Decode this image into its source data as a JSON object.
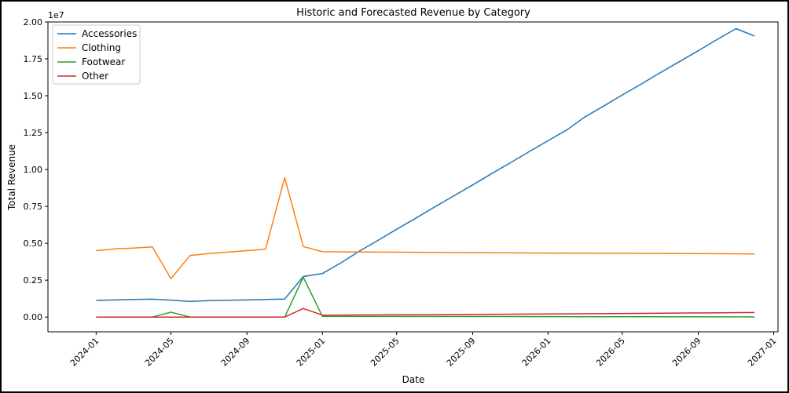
{
  "chart_data": {
    "type": "line",
    "title": "Historic and Forecasted Revenue by Category",
    "xlabel": "Date",
    "ylabel": "Total Revenue",
    "y_offset_text": "1e7",
    "xlim": [
      "2023-10-15",
      "2027-01-08"
    ],
    "ylim": [
      -0.1,
      2.0
    ],
    "y_multiplier": 10000000,
    "x_ticks": [
      "2024-01",
      "2024-05",
      "2024-09",
      "2025-01",
      "2025-05",
      "2025-09",
      "2026-01",
      "2026-05",
      "2026-09",
      "2027-01"
    ],
    "y_ticks": [
      "0.00",
      "0.25",
      "0.50",
      "0.75",
      "1.00",
      "1.25",
      "1.50",
      "1.75",
      "2.00"
    ],
    "legend_position": "upper-left",
    "grid": false,
    "series": [
      {
        "name": "Accessories",
        "color": "#1f77b4",
        "points": [
          [
            "2024-01-01",
            0.113
          ],
          [
            "2024-02-01",
            0.116
          ],
          [
            "2024-03-01",
            0.119
          ],
          [
            "2024-04-01",
            0.121
          ],
          [
            "2024-05-01",
            0.115
          ],
          [
            "2024-06-01",
            0.106
          ],
          [
            "2024-07-01",
            0.111
          ],
          [
            "2024-08-01",
            0.114
          ],
          [
            "2024-09-01",
            0.116
          ],
          [
            "2024-10-01",
            0.119
          ],
          [
            "2024-11-01",
            0.122
          ],
          [
            "2024-12-01",
            0.275
          ],
          [
            "2025-01-01",
            0.295
          ],
          [
            "2025-02-01",
            0.37
          ],
          [
            "2025-03-01",
            0.445
          ],
          [
            "2025-04-01",
            0.52
          ],
          [
            "2025-05-01",
            0.595
          ],
          [
            "2025-06-01",
            0.67
          ],
          [
            "2025-07-01",
            0.745
          ],
          [
            "2025-08-01",
            0.82
          ],
          [
            "2025-09-01",
            0.895
          ],
          [
            "2025-10-01",
            0.97
          ],
          [
            "2025-11-01",
            1.045
          ],
          [
            "2025-12-01",
            1.12
          ],
          [
            "2026-01-01",
            1.195
          ],
          [
            "2026-02-01",
            1.27
          ],
          [
            "2026-03-01",
            1.355
          ],
          [
            "2026-04-01",
            1.43
          ],
          [
            "2026-05-01",
            1.505
          ],
          [
            "2026-06-01",
            1.58
          ],
          [
            "2026-07-01",
            1.655
          ],
          [
            "2026-08-01",
            1.73
          ],
          [
            "2026-09-01",
            1.805
          ],
          [
            "2026-10-01",
            1.88
          ],
          [
            "2026-11-01",
            1.955
          ],
          [
            "2026-12-01",
            1.905
          ]
        ]
      },
      {
        "name": "Clothing",
        "color": "#ff7f0e",
        "points": [
          [
            "2024-01-01",
            0.45
          ],
          [
            "2024-02-01",
            0.462
          ],
          [
            "2024-03-01",
            0.468
          ],
          [
            "2024-04-01",
            0.475
          ],
          [
            "2024-05-01",
            0.26
          ],
          [
            "2024-06-01",
            0.418
          ],
          [
            "2024-07-01",
            0.43
          ],
          [
            "2024-08-01",
            0.44
          ],
          [
            "2024-09-01",
            0.45
          ],
          [
            "2024-10-01",
            0.46
          ],
          [
            "2024-11-01",
            0.945
          ],
          [
            "2024-12-01",
            0.478
          ],
          [
            "2025-01-01",
            0.443
          ],
          [
            "2025-03-01",
            0.441
          ],
          [
            "2025-06-01",
            0.439
          ],
          [
            "2025-09-01",
            0.437
          ],
          [
            "2026-01-01",
            0.434
          ],
          [
            "2026-05-01",
            0.432
          ],
          [
            "2026-09-01",
            0.43
          ],
          [
            "2026-12-01",
            0.428
          ]
        ]
      },
      {
        "name": "Footwear",
        "color": "#2ca02c",
        "points": [
          [
            "2024-01-01",
            0.0
          ],
          [
            "2024-02-01",
            0.0
          ],
          [
            "2024-03-01",
            0.0
          ],
          [
            "2024-04-01",
            0.0
          ],
          [
            "2024-05-01",
            0.033
          ],
          [
            "2024-06-01",
            0.0
          ],
          [
            "2024-07-01",
            0.0
          ],
          [
            "2024-08-01",
            0.0
          ],
          [
            "2024-09-01",
            0.0
          ],
          [
            "2024-10-01",
            0.0
          ],
          [
            "2024-11-01",
            0.0
          ],
          [
            "2024-12-01",
            0.27
          ],
          [
            "2025-01-01",
            0.005
          ],
          [
            "2025-06-01",
            0.004
          ],
          [
            "2026-01-01",
            0.003
          ],
          [
            "2026-06-01",
            0.002
          ],
          [
            "2026-12-01",
            0.001
          ]
        ]
      },
      {
        "name": "Other",
        "color": "#d62728",
        "points": [
          [
            "2024-01-01",
            0.0
          ],
          [
            "2024-02-01",
            0.0
          ],
          [
            "2024-03-01",
            0.0
          ],
          [
            "2024-04-01",
            0.0
          ],
          [
            "2024-05-01",
            0.0
          ],
          [
            "2024-06-01",
            0.0
          ],
          [
            "2024-07-01",
            0.0
          ],
          [
            "2024-08-01",
            0.0
          ],
          [
            "2024-09-01",
            0.0
          ],
          [
            "2024-10-01",
            0.0
          ],
          [
            "2024-11-01",
            0.0
          ],
          [
            "2024-12-01",
            0.058
          ],
          [
            "2025-01-01",
            0.013
          ],
          [
            "2025-06-01",
            0.016
          ],
          [
            "2025-12-01",
            0.02
          ],
          [
            "2026-06-01",
            0.025
          ],
          [
            "2026-12-01",
            0.031
          ]
        ]
      }
    ]
  }
}
